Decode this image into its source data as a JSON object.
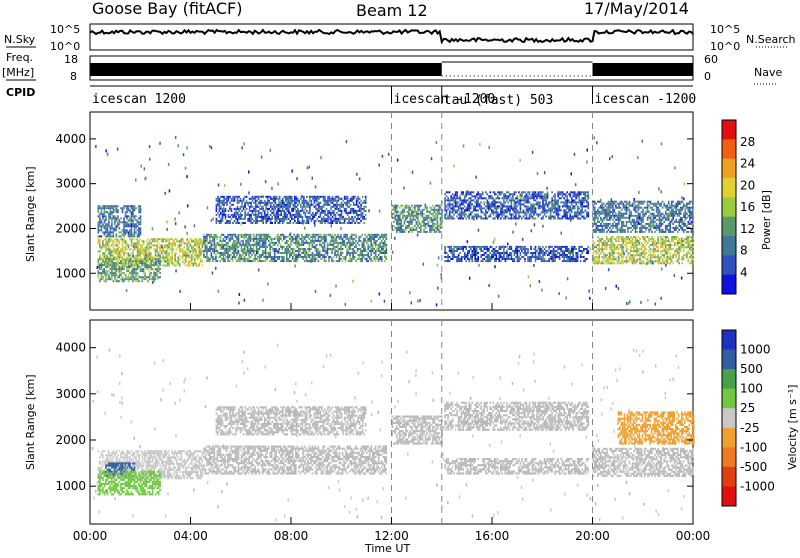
{
  "header": {
    "site": "Goose Bay (fitACF)",
    "beam": "Beam 12",
    "date": "17/May/2014"
  },
  "left_labels": {
    "nsky": "N.Sky",
    "freq": "Freq.",
    "mhz": "[MHz]",
    "cpid": "CPID"
  },
  "right_labels": {
    "nsearch": "N.Search",
    "nave": "Nave"
  },
  "strip_ticks": {
    "noise_left": [
      "10^5",
      "10^0"
    ],
    "noise_right": [
      "10^5",
      "10^0"
    ],
    "freq_left": [
      "18",
      "8"
    ],
    "freq_right": [
      "60",
      "0"
    ]
  },
  "cpid_modes": [
    {
      "label": "icescan 1200",
      "start_h": 0,
      "end_h": 12.0
    },
    {
      "label": "icescan -1200",
      "start_h": 12.0,
      "end_h": 14.0
    },
    {
      "label": "tau (fast) 503",
      "start_h": 14.0,
      "end_h": 20.0
    },
    {
      "label": "icescan -1200",
      "start_h": 20.0,
      "end_h": 24.0
    }
  ],
  "xaxis": {
    "label": "Time UT",
    "ticks": [
      "00:00",
      "04:00",
      "08:00",
      "12:00",
      "16:00",
      "20:00",
      "00:00"
    ],
    "range_h": [
      0,
      24
    ]
  },
  "power_panel": {
    "ylabel": "Slant Range [km]",
    "yticks": [
      "1000",
      "2000",
      "3000",
      "4000"
    ],
    "colorbar_label": "Power [dB]",
    "colorbar_ticks": [
      "4",
      "8",
      "12",
      "16",
      "20",
      "24",
      "28"
    ]
  },
  "velocity_panel": {
    "ylabel": "Slant Range [km]",
    "yticks": [
      "1000",
      "2000",
      "3000",
      "4000"
    ],
    "colorbar_label": "Velocity [m s⁻¹]",
    "colorbar_ticks": [
      "1000",
      "500",
      "100",
      "25",
      "-25",
      "-100",
      "-500",
      "-1000"
    ]
  },
  "colors": {
    "power_scale": [
      "#1010e0",
      "#3050c0",
      "#407898",
      "#5a9a6a",
      "#9acc40",
      "#e0d030",
      "#f0a020",
      "#f06010",
      "#e01010"
    ],
    "velocity_scale": [
      "#2030c0",
      "#3060a0",
      "#48a048",
      "#70c840",
      "#c8c8c8",
      "#f0a030",
      "#f07820",
      "#e04010",
      "#e01010"
    ],
    "ground_scatter": "#b8b8b8"
  },
  "chart_data": [
    {
      "type": "heatmap",
      "title": "Power",
      "x_unit": "hours UT",
      "y_unit": "km",
      "ylim": [
        180,
        4600
      ],
      "xlim": [
        0,
        24
      ],
      "zlabel": "Power [dB]",
      "zlim": [
        0,
        30
      ],
      "regions": [
        {
          "x": [
            0.3,
            4.5
          ],
          "y": [
            1150,
            1750
          ],
          "value": 16
        },
        {
          "x": [
            4.5,
            11.8
          ],
          "y": [
            1250,
            1850
          ],
          "value": 10
        },
        {
          "x": [
            0.3,
            2.8
          ],
          "y": [
            800,
            1300
          ],
          "value": 12
        },
        {
          "x": [
            0.3,
            2.0
          ],
          "y": [
            1800,
            2500
          ],
          "value": 8
        },
        {
          "x": [
            5.0,
            11.0
          ],
          "y": [
            2100,
            2700
          ],
          "value": 6
        },
        {
          "x": [
            12.0,
            14.0
          ],
          "y": [
            1900,
            2500
          ],
          "value": 10
        },
        {
          "x": [
            14.1,
            19.8
          ],
          "y": [
            1250,
            1600
          ],
          "value": 6
        },
        {
          "x": [
            14.1,
            19.8
          ],
          "y": [
            2200,
            2800
          ],
          "value": 6
        },
        {
          "x": [
            20.0,
            24.0
          ],
          "y": [
            1200,
            1800
          ],
          "value": 16
        },
        {
          "x": [
            20.0,
            24.0
          ],
          "y": [
            1900,
            2600
          ],
          "value": 8
        }
      ]
    },
    {
      "type": "heatmap",
      "title": "Velocity",
      "x_unit": "hours UT",
      "y_unit": "km",
      "ylim": [
        180,
        4600
      ],
      "xlim": [
        0,
        24
      ],
      "zlabel": "Velocity [m s⁻¹]",
      "zlim": [
        -1000,
        1000
      ],
      "regions": [
        {
          "x": [
            0.3,
            4.5
          ],
          "y": [
            1150,
            1750
          ],
          "value": 80
        },
        {
          "x": [
            0.6,
            1.8
          ],
          "y": [
            1200,
            1500
          ],
          "value": 700
        },
        {
          "x": [
            0.3,
            2.8
          ],
          "y": [
            800,
            1300
          ],
          "value": 150
        },
        {
          "x": [
            4.5,
            11.8
          ],
          "y": [
            1250,
            1850
          ],
          "value": 0
        },
        {
          "x": [
            5.0,
            11.0
          ],
          "y": [
            2100,
            2700
          ],
          "value": 0
        },
        {
          "x": [
            12.0,
            14.0
          ],
          "y": [
            1900,
            2500
          ],
          "value": 0
        },
        {
          "x": [
            14.1,
            19.8
          ],
          "y": [
            1250,
            1600
          ],
          "value": 0
        },
        {
          "x": [
            14.1,
            19.8
          ],
          "y": [
            2200,
            2800
          ],
          "value": 0
        },
        {
          "x": [
            20.0,
            24.0
          ],
          "y": [
            1200,
            1800
          ],
          "value": 0
        },
        {
          "x": [
            21.0,
            24.0
          ],
          "y": [
            1900,
            2600
          ],
          "value": -150
        }
      ]
    }
  ]
}
